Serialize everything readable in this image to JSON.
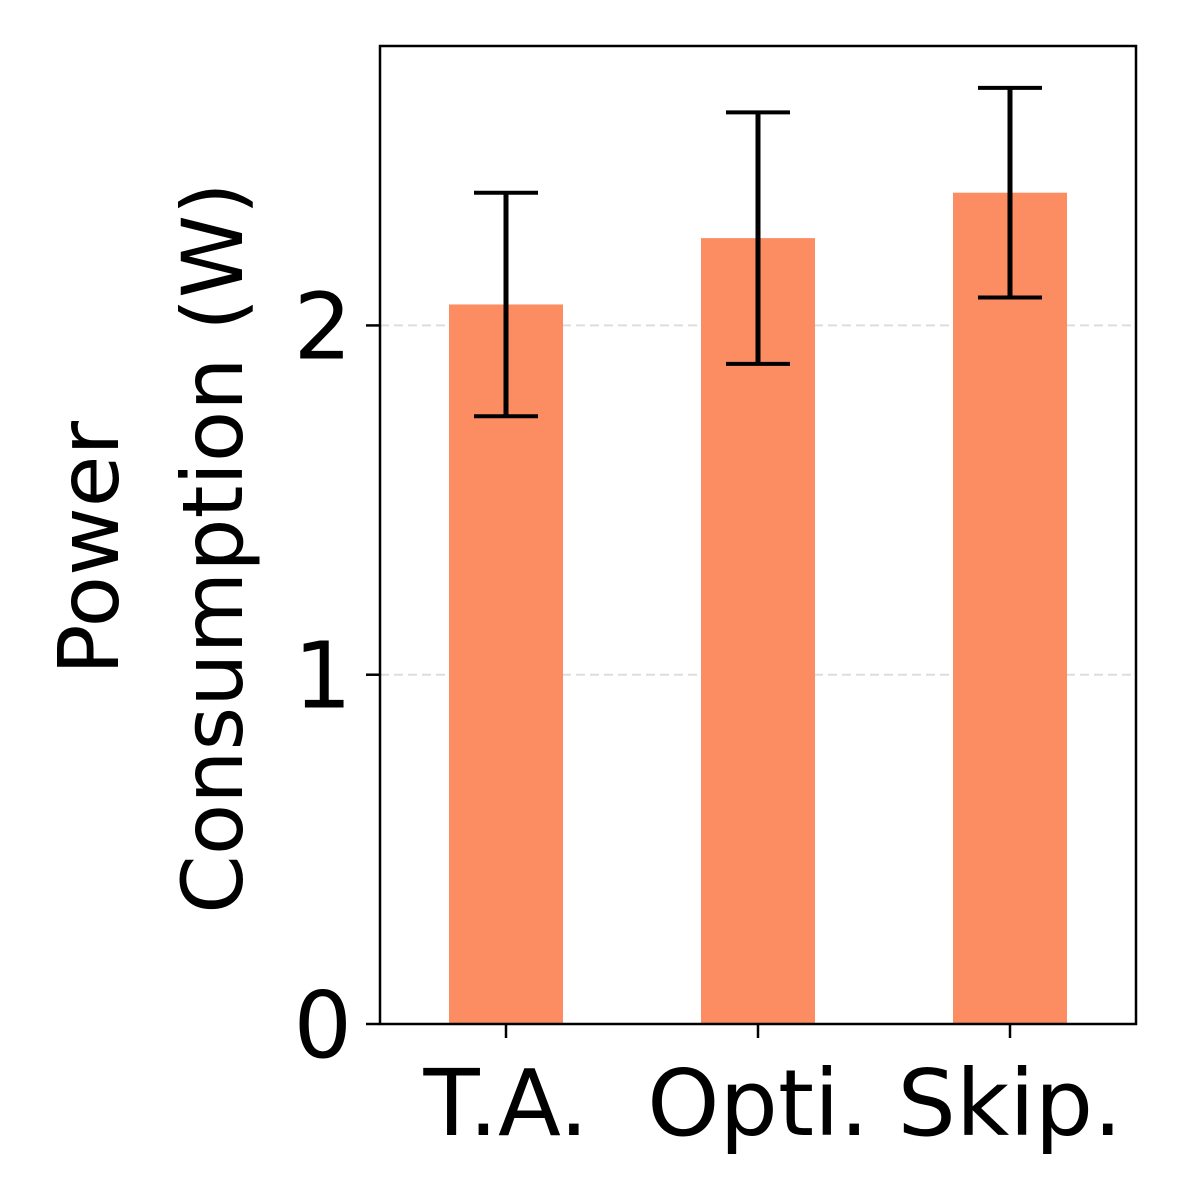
{
  "chart_data": {
    "type": "bar",
    "categories": [
      "T.A.",
      "Opti.",
      "Skip."
    ],
    "values": [
      2.06,
      2.25,
      2.38
    ],
    "error": [
      0.32,
      0.36,
      0.3
    ],
    "title": "",
    "xlabel": "",
    "ylabel_lines": [
      "Power",
      "Consumption (W)"
    ],
    "ylim": [
      0,
      2.8
    ],
    "yticks": [
      0,
      1,
      2
    ],
    "ytick_labels": [
      "0",
      "1",
      "2"
    ],
    "grid": "horizontal dashed",
    "colors": {
      "bar": "#fc8d62",
      "error": "#000000",
      "grid": "#dddddd",
      "axis": "#000000"
    }
  }
}
